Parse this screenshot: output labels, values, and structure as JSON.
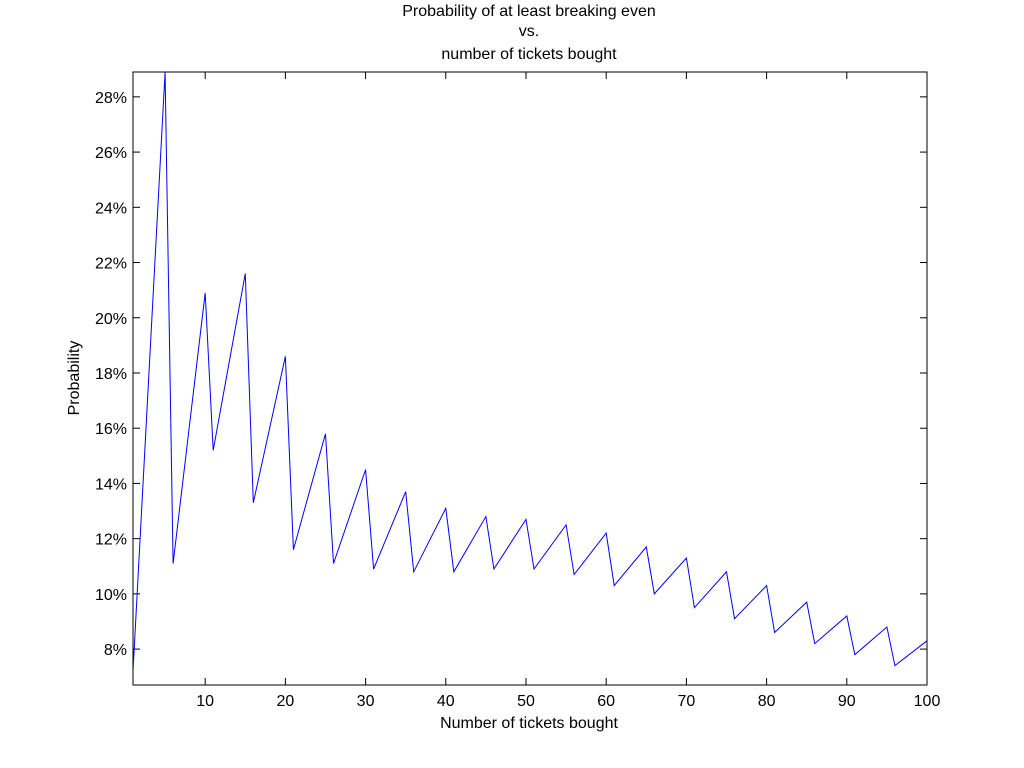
{
  "chart_data": {
    "type": "line",
    "title": [
      "Probability of at least breaking even",
      "vs.",
      "number of tickets bought"
    ],
    "xlabel": "Number of tickets bought",
    "ylabel": "Probability",
    "xlim": [
      1,
      100
    ],
    "ylim": [
      6.7,
      28.9
    ],
    "xticks": [
      10,
      20,
      30,
      40,
      50,
      60,
      70,
      80,
      90,
      100
    ],
    "xtick_labels": [
      "10",
      "20",
      "30",
      "40",
      "50",
      "60",
      "70",
      "80",
      "90",
      "100"
    ],
    "yticks": [
      8,
      10,
      12,
      14,
      16,
      18,
      20,
      22,
      24,
      26,
      28
    ],
    "ytick_labels": [
      "8%",
      "10%",
      "12%",
      "14%",
      "16%",
      "18%",
      "20%",
      "22%",
      "24%",
      "26%",
      "28%"
    ],
    "grid": false,
    "series": [
      {
        "color": "#0000ff",
        "points": [
          [
            1,
            7.2
          ],
          [
            5,
            28.9
          ],
          [
            6,
            11.1
          ],
          [
            10,
            20.9
          ],
          [
            11,
            15.2
          ],
          [
            15,
            21.6
          ],
          [
            16,
            13.3
          ],
          [
            20,
            18.6
          ],
          [
            21,
            11.6
          ],
          [
            25,
            15.8
          ],
          [
            26,
            11.1
          ],
          [
            30,
            14.5
          ],
          [
            31,
            10.9
          ],
          [
            35,
            13.7
          ],
          [
            36,
            10.8
          ],
          [
            40,
            13.1
          ],
          [
            41,
            10.8
          ],
          [
            45,
            12.8
          ],
          [
            46,
            10.9
          ],
          [
            50,
            12.7
          ],
          [
            51,
            10.9
          ],
          [
            55,
            12.5
          ],
          [
            56,
            10.7
          ],
          [
            60,
            12.2
          ],
          [
            61,
            10.3
          ],
          [
            65,
            11.7
          ],
          [
            66,
            10.0
          ],
          [
            70,
            11.3
          ],
          [
            71,
            9.5
          ],
          [
            75,
            10.8
          ],
          [
            76,
            9.1
          ],
          [
            80,
            10.3
          ],
          [
            81,
            8.6
          ],
          [
            85,
            9.7
          ],
          [
            86,
            8.2
          ],
          [
            90,
            9.2
          ],
          [
            91,
            7.8
          ],
          [
            95,
            8.8
          ],
          [
            96,
            7.4
          ],
          [
            100,
            8.3
          ]
        ]
      }
    ]
  }
}
